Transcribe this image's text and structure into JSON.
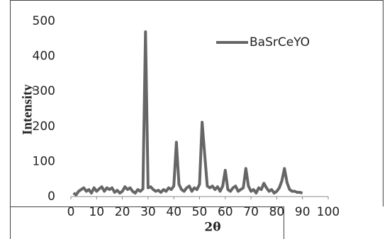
{
  "chart_data": {
    "type": "line",
    "x_label": "2θ",
    "y_label": "Intensity",
    "x": [
      1,
      2,
      3,
      4,
      5,
      6,
      7,
      8,
      9,
      10,
      11,
      12,
      13,
      14,
      15,
      16,
      17,
      18,
      19,
      20,
      21,
      22,
      23,
      24,
      25,
      26,
      27,
      28,
      29,
      30,
      31,
      32,
      33,
      34,
      35,
      36,
      37,
      38,
      39,
      40,
      41,
      42,
      43,
      44,
      45,
      46,
      47,
      48,
      49,
      50,
      51,
      52,
      53,
      54,
      55,
      56,
      57,
      58,
      59,
      60,
      61,
      62,
      63,
      64,
      65,
      66,
      67,
      68,
      69,
      70,
      71,
      72,
      73,
      74,
      75,
      76,
      77,
      78,
      79,
      80,
      81,
      82,
      83,
      84,
      85,
      86,
      87,
      88,
      89,
      90
    ],
    "series": [
      {
        "name": "BaSrCeYO",
        "color": "#666666",
        "values": [
          10,
          5,
          15,
          20,
          25,
          15,
          20,
          10,
          25,
          15,
          22,
          28,
          15,
          25,
          20,
          25,
          12,
          18,
          10,
          15,
          28,
          20,
          25,
          15,
          10,
          20,
          15,
          22,
          470,
          25,
          28,
          20,
          15,
          18,
          12,
          20,
          15,
          25,
          20,
          30,
          155,
          35,
          20,
          15,
          25,
          30,
          15,
          25,
          20,
          35,
          212,
          120,
          30,
          25,
          30,
          20,
          28,
          15,
          30,
          75,
          20,
          15,
          25,
          30,
          15,
          20,
          25,
          80,
          30,
          15,
          20,
          10,
          25,
          20,
          38,
          25,
          15,
          20,
          10,
          15,
          25,
          45,
          80,
          40,
          20,
          15,
          15,
          12,
          12,
          10
        ]
      }
    ],
    "xlim": [
      0,
      100
    ],
    "xticks": [
      0,
      10,
      20,
      30,
      40,
      50,
      60,
      70,
      80,
      90,
      100
    ],
    "ylim": [
      0,
      500
    ],
    "yticks": [
      0,
      100,
      200,
      300,
      400,
      500
    ],
    "grid": false,
    "legend": "upper right"
  }
}
